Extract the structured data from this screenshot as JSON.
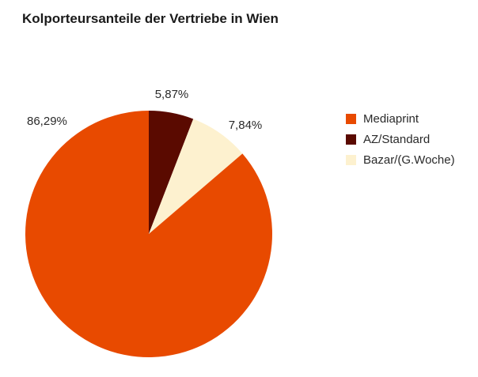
{
  "chart_data": {
    "type": "pie",
    "title": "Kolporteursanteile der Vertriebe in Wien",
    "slices": [
      {
        "name": "Mediaprint",
        "value": 86.29,
        "label": "86,29%",
        "color": "#e84a00"
      },
      {
        "name": "AZ/Standard",
        "value": 5.87,
        "label": "5,87%",
        "color": "#5a0a00"
      },
      {
        "name": "Bazar/(G.Woche)",
        "value": 7.84,
        "label": "7,84%",
        "color": "#fdf1cf"
      }
    ],
    "legend_position": "right"
  }
}
